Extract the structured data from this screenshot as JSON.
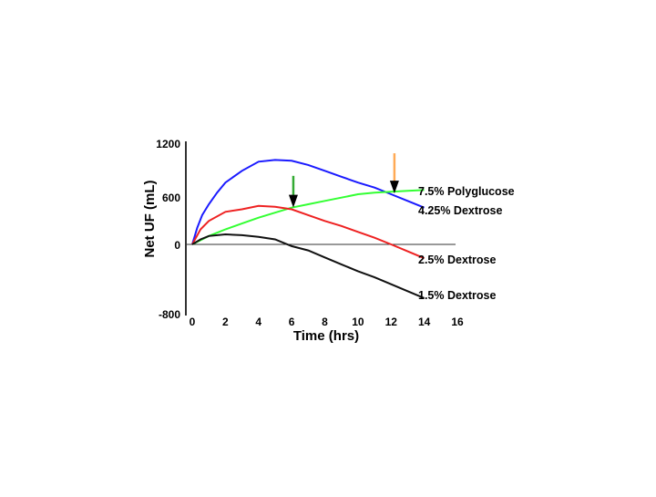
{
  "chart_data": {
    "type": "line",
    "title": "",
    "xlabel": "Time (hrs)",
    "ylabel": "Net UF (mL)",
    "xlim": [
      0,
      16
    ],
    "x_ticks": [
      0,
      2,
      4,
      6,
      8,
      10,
      12,
      14,
      16
    ],
    "y_tick_labels": [
      "1200",
      "600",
      "0",
      "-800"
    ],
    "grid": false,
    "series": [
      {
        "name": "4.25% Dextrose",
        "color": "#1a1aff",
        "x": [
          0,
          0.3,
          0.6,
          1,
          1.5,
          2,
          3,
          4,
          5,
          6,
          7,
          8,
          9,
          10,
          11,
          12,
          13,
          14
        ],
        "y": [
          0,
          200,
          350,
          480,
          620,
          740,
          880,
          990,
          1010,
          1000,
          950,
          880,
          810,
          740,
          680,
          600,
          520,
          440
        ]
      },
      {
        "name": "7.5% Polyglucose",
        "color": "#33ff33",
        "x": [
          0,
          1,
          2,
          3,
          4,
          5,
          6,
          7,
          8,
          9,
          10,
          11,
          12,
          13,
          14
        ],
        "y": [
          0,
          100,
          180,
          250,
          320,
          380,
          440,
          480,
          520,
          560,
          600,
          620,
          630,
          640,
          650
        ]
      },
      {
        "name": "2.5% Dextrose",
        "color": "#ee2222",
        "x": [
          0,
          0.5,
          1,
          2,
          3,
          4,
          5,
          6,
          7,
          8,
          9,
          10,
          11,
          12,
          13,
          14
        ],
        "y": [
          0,
          180,
          280,
          390,
          420,
          460,
          450,
          420,
          350,
          280,
          220,
          150,
          80,
          0,
          -80,
          -160
        ]
      },
      {
        "name": "1.5% Dextrose",
        "color": "#111111",
        "x": [
          0,
          0.5,
          1,
          2,
          3,
          4,
          5,
          6,
          7,
          8,
          9,
          10,
          11,
          12,
          13,
          14
        ],
        "y": [
          0,
          60,
          100,
          120,
          110,
          90,
          60,
          -20,
          -70,
          -150,
          -230,
          -310,
          -380,
          -460,
          -540,
          -620
        ]
      }
    ],
    "annotations": [
      {
        "name": "green-arrow",
        "x": 6.1,
        "y_from": 820,
        "y_to": 440,
        "stroke": "#33aa33",
        "head": "#000000"
      },
      {
        "name": "orange-arrow",
        "x": 12.2,
        "y_from": 1090,
        "y_to": 610,
        "stroke": "#ffaa55",
        "head": "#000000"
      }
    ]
  }
}
